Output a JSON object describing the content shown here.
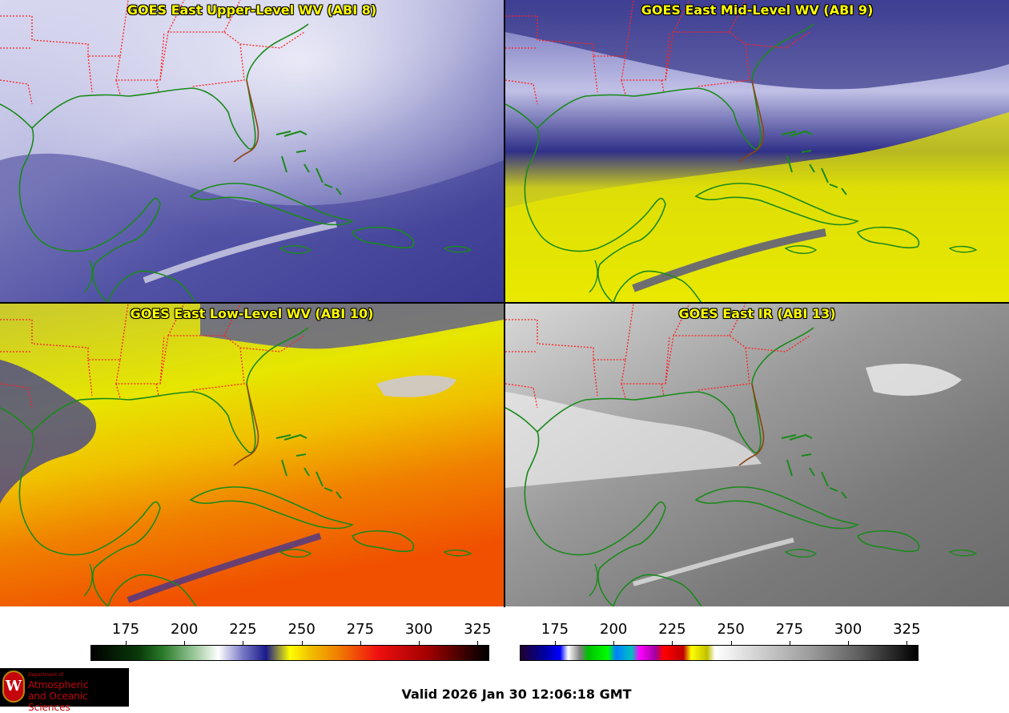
{
  "panels": [
    {
      "id": "upper",
      "title": "GOES East Upper-Level WV (ABI 8)"
    },
    {
      "id": "mid",
      "title": "GOES East Mid-Level WV (ABI 9)"
    },
    {
      "id": "low",
      "title": "GOES East Low-Level WV (ABI 10)"
    },
    {
      "id": "ir",
      "title": "GOES East IR (ABI 13)"
    }
  ],
  "colorbars": [
    {
      "name": "wv-colorbar",
      "ticks": [
        "175",
        "200",
        "225",
        "250",
        "275",
        "300",
        "325"
      ],
      "min": 160,
      "max": 330
    },
    {
      "name": "ir-colorbar",
      "ticks": [
        "175",
        "200",
        "225",
        "250",
        "275",
        "300",
        "325"
      ],
      "min": 160,
      "max": 330
    }
  ],
  "logo": {
    "seal": "W",
    "line1": "Department of",
    "line2": "Atmospheric",
    "line3": "and Oceanic Sciences"
  },
  "valid_time": "Valid 2026 Jan 30 12:06:18 GMT",
  "colors": {
    "coastline": "#1a8a1a",
    "state_border": "#ff2020",
    "title": "#ffff00"
  }
}
